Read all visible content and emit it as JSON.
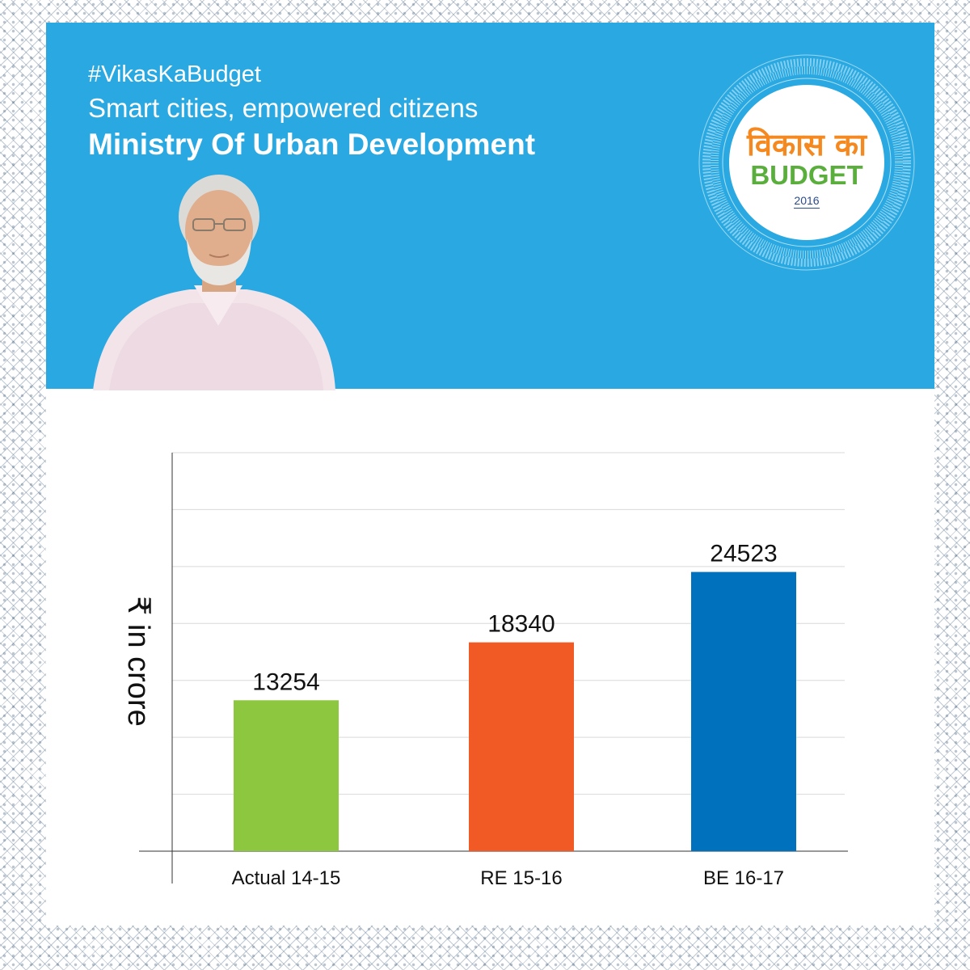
{
  "header": {
    "hashtag": "#VikasKaBudget",
    "subtitle": "Smart cities, empowered citizens",
    "ministry": "Ministry Of Urban Development"
  },
  "emblem": {
    "hindi": "विकास का",
    "budget": "BUDGET",
    "year": "2016"
  },
  "colors": {
    "banner": "#29a8e1",
    "actual": "#8dc63f",
    "revised": "#f15a24",
    "budget_estimate": "#0071bc"
  },
  "chart_data": {
    "type": "bar",
    "categories": [
      "Actual 14-15",
      "RE 15-16",
      "BE 16-17"
    ],
    "values": [
      13254,
      18340,
      24523
    ],
    "colors": [
      "#8dc63f",
      "#f15a24",
      "#0071bc"
    ],
    "data_labels": [
      "13254",
      "18340",
      "24523"
    ],
    "ylabel": "₹ in crore",
    "ylim": [
      0,
      35000
    ],
    "grid": true
  }
}
